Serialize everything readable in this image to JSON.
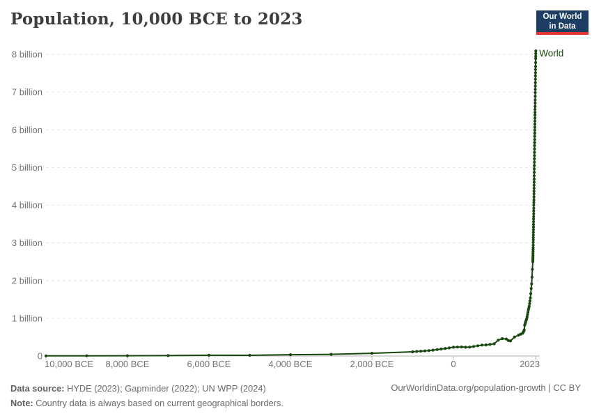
{
  "header": {
    "title": "Population, 10,000 BCE to 2023",
    "logo": {
      "line1": "Our World",
      "line2": "in Data"
    }
  },
  "chart_data": {
    "type": "line",
    "title": "Population, 10,000 BCE to 2023",
    "xlabel": "",
    "ylabel": "",
    "units": "billions of people",
    "xlim": [
      -10000,
      2023
    ],
    "ylim": [
      0,
      8
    ],
    "grid": "horizontal-dashed",
    "legend_position": "end-of-line",
    "x_ticks": [
      {
        "year": -10000,
        "label": "10,000 BCE"
      },
      {
        "year": -8000,
        "label": "8,000 BCE"
      },
      {
        "year": -6000,
        "label": "6,000 BCE"
      },
      {
        "year": -4000,
        "label": "4,000 BCE"
      },
      {
        "year": -2000,
        "label": "2,000 BCE"
      },
      {
        "year": 0,
        "label": "0"
      },
      {
        "year": 2023,
        "label": "2023"
      }
    ],
    "y_ticks": [
      {
        "value": 0,
        "label": "0"
      },
      {
        "value": 1,
        "label": "1 billion"
      },
      {
        "value": 2,
        "label": "2 billion"
      },
      {
        "value": 3,
        "label": "3 billion"
      },
      {
        "value": 4,
        "label": "4 billion"
      },
      {
        "value": 5,
        "label": "5 billion"
      },
      {
        "value": 6,
        "label": "6 billion"
      },
      {
        "value": 7,
        "label": "7 billion"
      },
      {
        "value": 8,
        "label": "8 billion"
      }
    ],
    "series": [
      {
        "name": "World",
        "color": "#18470f",
        "points": [
          [
            -10000,
            0.004
          ],
          [
            -9000,
            0.006
          ],
          [
            -8000,
            0.007
          ],
          [
            -7000,
            0.011
          ],
          [
            -6000,
            0.02
          ],
          [
            -5000,
            0.019
          ],
          [
            -4000,
            0.036
          ],
          [
            -3000,
            0.045
          ],
          [
            -2000,
            0.072
          ],
          [
            -1000,
            0.11
          ],
          [
            -900,
            0.12
          ],
          [
            -800,
            0.127
          ],
          [
            -700,
            0.135
          ],
          [
            -600,
            0.145
          ],
          [
            -500,
            0.155
          ],
          [
            -400,
            0.17
          ],
          [
            -300,
            0.185
          ],
          [
            -200,
            0.2
          ],
          [
            -100,
            0.215
          ],
          [
            0,
            0.232
          ],
          [
            100,
            0.236
          ],
          [
            200,
            0.24
          ],
          [
            300,
            0.232
          ],
          [
            400,
            0.237
          ],
          [
            500,
            0.253
          ],
          [
            600,
            0.272
          ],
          [
            700,
            0.29
          ],
          [
            800,
            0.293
          ],
          [
            900,
            0.307
          ],
          [
            1000,
            0.323
          ],
          [
            1100,
            0.42
          ],
          [
            1200,
            0.46
          ],
          [
            1300,
            0.45
          ],
          [
            1350,
            0.41
          ],
          [
            1400,
            0.4
          ],
          [
            1500,
            0.503
          ],
          [
            1600,
            0.554
          ],
          [
            1650,
            0.578
          ],
          [
            1700,
            0.603
          ],
          [
            1710,
            0.622
          ],
          [
            1720,
            0.641
          ],
          [
            1730,
            0.661
          ],
          [
            1740,
            0.692
          ],
          [
            1750,
            0.814
          ],
          [
            1760,
            0.85
          ],
          [
            1770,
            0.888
          ],
          [
            1780,
            0.928
          ],
          [
            1790,
            0.958
          ],
          [
            1800,
            0.99
          ],
          [
            1810,
            1.04
          ],
          [
            1820,
            1.1
          ],
          [
            1830,
            1.16
          ],
          [
            1840,
            1.22
          ],
          [
            1850,
            1.263
          ],
          [
            1860,
            1.32
          ],
          [
            1870,
            1.39
          ],
          [
            1880,
            1.46
          ],
          [
            1890,
            1.54
          ],
          [
            1900,
            1.654
          ],
          [
            1910,
            1.79
          ],
          [
            1920,
            1.912
          ],
          [
            1930,
            2.09
          ],
          [
            1940,
            2.3
          ],
          [
            1950,
            2.499
          ],
          [
            1951,
            2.54
          ],
          [
            1952,
            2.58
          ],
          [
            1953,
            2.62
          ],
          [
            1954,
            2.67
          ],
          [
            1955,
            2.72
          ],
          [
            1956,
            2.77
          ],
          [
            1957,
            2.82
          ],
          [
            1958,
            2.87
          ],
          [
            1959,
            2.94
          ],
          [
            1960,
            3.015
          ],
          [
            1961,
            3.08
          ],
          [
            1962,
            3.14
          ],
          [
            1963,
            3.21
          ],
          [
            1964,
            3.28
          ],
          [
            1965,
            3.35
          ],
          [
            1966,
            3.42
          ],
          [
            1967,
            3.49
          ],
          [
            1968,
            3.56
          ],
          [
            1969,
            3.63
          ],
          [
            1970,
            3.695
          ],
          [
            1971,
            3.77
          ],
          [
            1972,
            3.85
          ],
          [
            1973,
            3.92
          ],
          [
            1974,
            4.0
          ],
          [
            1975,
            4.07
          ],
          [
            1976,
            4.14
          ],
          [
            1977,
            4.22
          ],
          [
            1978,
            4.3
          ],
          [
            1979,
            4.37
          ],
          [
            1980,
            4.447
          ],
          [
            1981,
            4.53
          ],
          [
            1982,
            4.61
          ],
          [
            1983,
            4.69
          ],
          [
            1984,
            4.78
          ],
          [
            1985,
            4.87
          ],
          [
            1986,
            4.96
          ],
          [
            1987,
            5.05
          ],
          [
            1988,
            5.14
          ],
          [
            1989,
            5.23
          ],
          [
            1990,
            5.316
          ],
          [
            1991,
            5.4
          ],
          [
            1992,
            5.49
          ],
          [
            1993,
            5.58
          ],
          [
            1994,
            5.66
          ],
          [
            1995,
            5.74
          ],
          [
            1996,
            5.83
          ],
          [
            1997,
            5.91
          ],
          [
            1998,
            5.99
          ],
          [
            1999,
            6.07
          ],
          [
            2000,
            6.149
          ],
          [
            2001,
            6.23
          ],
          [
            2002,
            6.31
          ],
          [
            2003,
            6.39
          ],
          [
            2004,
            6.46
          ],
          [
            2005,
            6.54
          ],
          [
            2006,
            6.62
          ],
          [
            2007,
            6.71
          ],
          [
            2008,
            6.79
          ],
          [
            2009,
            6.89
          ],
          [
            2010,
            6.985
          ],
          [
            2011,
            7.07
          ],
          [
            2012,
            7.16
          ],
          [
            2013,
            7.25
          ],
          [
            2014,
            7.34
          ],
          [
            2015,
            7.43
          ],
          [
            2016,
            7.51
          ],
          [
            2017,
            7.6
          ],
          [
            2018,
            7.68
          ],
          [
            2019,
            7.78
          ],
          [
            2020,
            7.887
          ],
          [
            2021,
            7.95
          ],
          [
            2022,
            8.021
          ],
          [
            2023,
            8.092
          ]
        ]
      }
    ]
  },
  "footer": {
    "source_label": "Data source:",
    "source_text": " HYDE (2023); Gapminder (2022); UN WPP (2024)",
    "note_label": "Note:",
    "note_text": " Country data is always based on current geographical borders.",
    "link": "OurWorldinData.org/population-growth | CC BY"
  },
  "colors": {
    "line": "#18470f",
    "grid": "#e2e2e2",
    "axis": "#b0b0b0",
    "tick_label": "#737373",
    "title": "#3d3d3d",
    "footer_text": "#6b6b6b",
    "logo_bg": "#1d3d63",
    "logo_red": "#e0372e"
  }
}
